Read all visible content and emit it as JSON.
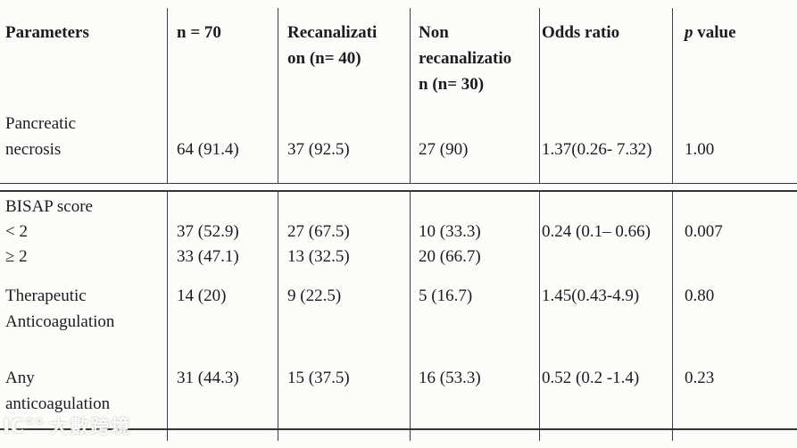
{
  "header": {
    "col1": "Parameters",
    "col2": "n = 70",
    "col3_line1": "Recanalizati",
    "col3_line2": "on (n= 40)",
    "col4_line1": "Non",
    "col4_line2": "recanalizatio",
    "col4_line3": "n (n= 30)",
    "col5": "Odds ratio",
    "col6_italic": "p",
    "col6_rest": " value"
  },
  "rows": {
    "pancreatic": {
      "label_line1": "Pancreatic",
      "label_line2": "necrosis",
      "n70": "64 (91.4)",
      "recanalization": "37 (92.5)",
      "non_recanalization": "27 (90)",
      "odds_ratio": "1.37(0.26- 7.32)",
      "p_value": "1.00"
    },
    "bisap": {
      "title": "BISAP score",
      "lt2_label": "< 2",
      "gte2_label": "≥ 2",
      "n70_lt2": "37 (52.9)",
      "n70_gte2": "33 (47.1)",
      "recanalization_lt2": "27 (67.5)",
      "recanalization_gte2": "13 (32.5)",
      "non_recanalization_lt2": "10 (33.3)",
      "non_recanalization_gte2": "20 (66.7)",
      "odds_ratio": "0.24 (0.1– 0.66)",
      "p_value": "0.007"
    },
    "therapeutic": {
      "label_line1": "Therapeutic",
      "label_line2": "Anticoagulation",
      "n70": "14 (20)",
      "recanalization": "9 (22.5)",
      "non_recanalization": "5 (16.7)",
      "odds_ratio": "1.45(0.43-4.9)",
      "p_value": "0.80"
    },
    "any": {
      "label_line1": "Any",
      "label_line2": "anticoagulation",
      "n70": "31 (44.3)",
      "recanalization": "15 (37.5)",
      "non_recanalization": "16 (53.3)",
      "odds_ratio": "0.52 (0.2 -1.4)",
      "p_value": "0.23"
    }
  },
  "watermark": {
    "logo": "IC°°",
    "text": "大數跨境"
  }
}
